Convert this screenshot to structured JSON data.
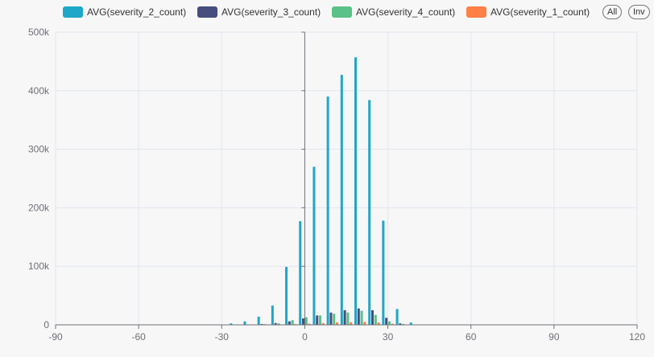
{
  "legend": {
    "items": [
      {
        "label": "AVG(severity_2_count)",
        "color": "#1ea7c9"
      },
      {
        "label": "AVG(severity_3_count)",
        "color": "#454e7c"
      },
      {
        "label": "AVG(severity_4_count)",
        "color": "#5ac189"
      },
      {
        "label": "AVG(severity_1_count)",
        "color": "#ff7f44"
      }
    ],
    "all_label": "All",
    "invert_label": "Inv"
  },
  "chart_data": {
    "type": "bar",
    "xlim": [
      -90,
      120
    ],
    "ylim": [
      0,
      500000
    ],
    "x_ticks": [
      -90,
      -60,
      -30,
      0,
      30,
      60,
      90,
      120
    ],
    "x_tick_labels": [
      "-90",
      "-60",
      "-30",
      "0",
      "30",
      "60",
      "90",
      "120"
    ],
    "y_ticks": [
      0,
      100000,
      200000,
      300000,
      400000,
      500000
    ],
    "y_tick_labels": [
      "0",
      "100k",
      "200k",
      "300k",
      "400k",
      "500k"
    ],
    "grid": true,
    "legend_position": "top",
    "x": [
      -30,
      -25,
      -20,
      -15,
      -10,
      -5,
      0,
      5,
      10,
      15,
      20,
      25,
      30,
      35,
      40,
      45
    ],
    "series": [
      {
        "name": "AVG(severity_2_count)",
        "color": "#1ea7c9",
        "values": [
          500,
          2500,
          6000,
          14000,
          33000,
          99000,
          177000,
          270000,
          390000,
          427000,
          457000,
          384000,
          178000,
          27000,
          4000,
          300
        ]
      },
      {
        "name": "AVG(severity_3_count)",
        "color": "#454e7c",
        "values": [
          0,
          300,
          800,
          1500,
          3000,
          6000,
          11000,
          16000,
          21000,
          25000,
          28000,
          25000,
          12000,
          2500,
          500,
          0
        ]
      },
      {
        "name": "AVG(severity_4_count)",
        "color": "#5ac189",
        "values": [
          0,
          200,
          600,
          1200,
          2500,
          8000,
          13000,
          16000,
          19000,
          21000,
          24000,
          17000,
          6000,
          1500,
          200,
          0
        ]
      },
      {
        "name": "AVG(severity_1_count)",
        "color": "#ff7f44",
        "values": [
          0,
          50,
          100,
          300,
          600,
          1200,
          2000,
          3000,
          4000,
          4500,
          5000,
          4000,
          2000,
          500,
          100,
          0
        ]
      }
    ]
  }
}
